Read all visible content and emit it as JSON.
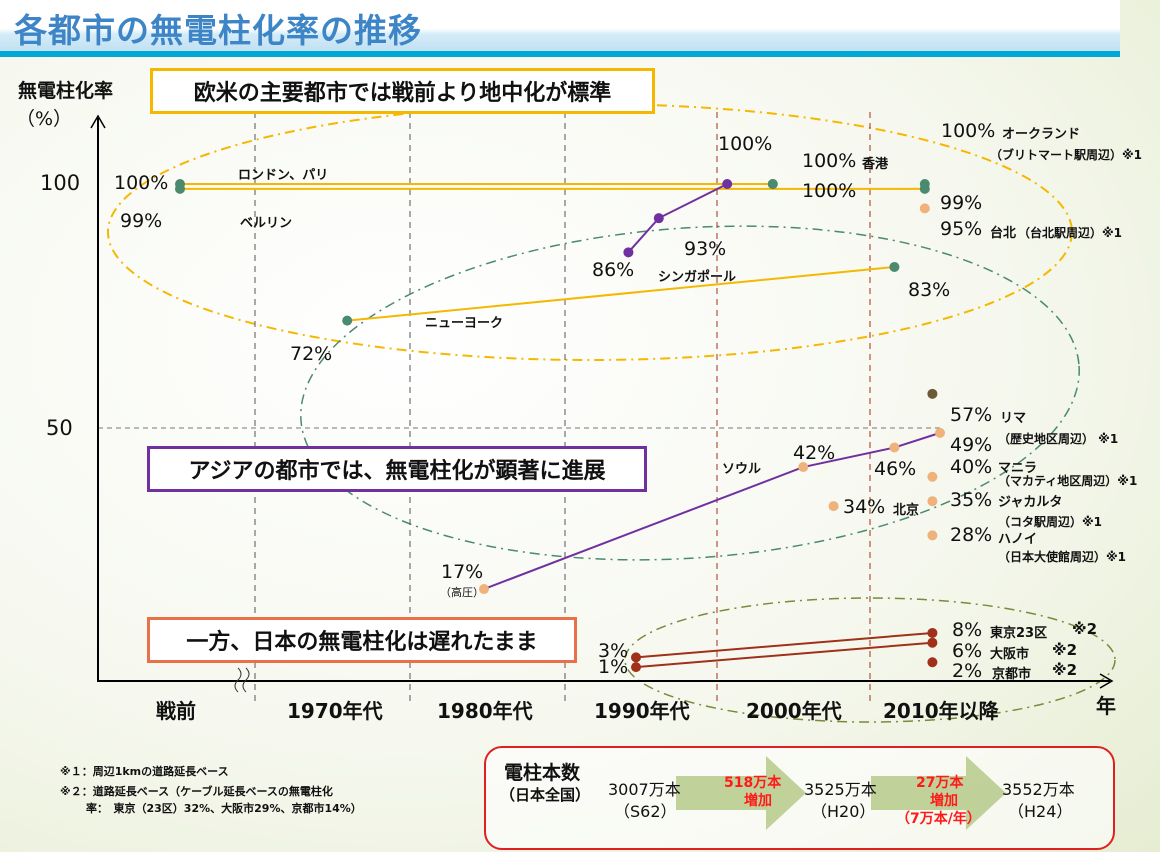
{
  "title": "各都市の無電柱化率の推移",
  "y_axis": {
    "label": "無電柱化率",
    "unit": "（%）",
    "ticks": [
      "100",
      "50"
    ]
  },
  "x_axis": {
    "label": "年",
    "categories": [
      "戦前",
      "1970年代",
      "1980年代",
      "1990年代",
      "2000年代",
      "2010年以降"
    ]
  },
  "callouts": {
    "western": "欧米の主要都市では戦前より地中化が標準",
    "asia": "アジアの都市では、無電柱化が顕著に進展",
    "japan": "一方、日本の無電柱化は遅れたまま"
  },
  "colors": {
    "western": "#f5b800",
    "asia": "#7030a0",
    "japan": "#a0301a",
    "green_dot": "#4a8a6e",
    "orange_dot": "#efb27a",
    "lima_dot": "#6b5a3a"
  },
  "chart_data": {
    "type": "line",
    "title": "各都市の無電柱化率の推移",
    "xlabel": "年",
    "ylabel": "無電柱化率（%）",
    "x_unit": "period index (0=戦前, 1=1970年代, 2=1980年代, 3=1990年代, 4=2000年代, 5=2010年以降)",
    "ylim": [
      0,
      100
    ],
    "series": [
      {
        "name": "ロンドン、パリ",
        "points": [
          [
            0,
            100
          ],
          [
            3.9,
            100
          ]
        ],
        "labels": [
          "100%",
          "100%"
        ],
        "color": "#f5b800"
      },
      {
        "name": "ベルリン",
        "points": [
          [
            0,
            99
          ],
          [
            4.9,
            99
          ]
        ],
        "labels": [
          "99%",
          "99%"
        ],
        "color": "#f5b800"
      },
      {
        "name": "ニューヨーク",
        "points": [
          [
            1.1,
            72
          ],
          [
            4.7,
            83
          ]
        ],
        "labels": [
          "72%",
          "83%"
        ],
        "color": "#f5b800"
      },
      {
        "name": "シンガポール",
        "points": [
          [
            2.95,
            86
          ],
          [
            3.15,
            93
          ],
          [
            3.6,
            100
          ]
        ],
        "labels": [
          "86%",
          "93%",
          "100%"
        ],
        "color": "#7030a0"
      },
      {
        "name": "ソウル",
        "points": [
          [
            2.0,
            17
          ],
          [
            4.1,
            42
          ],
          [
            4.7,
            46
          ],
          [
            5.0,
            49
          ]
        ],
        "labels": [
          "17%",
          "42%",
          "46%",
          "49%"
        ],
        "note": "（高圧）",
        "color": "#7030a0"
      },
      {
        "name": "東京23区",
        "points": [
          [
            3.0,
            3
          ],
          [
            4.95,
            8
          ]
        ],
        "labels": [
          "3%",
          "8%"
        ],
        "note": "※2",
        "color": "#a0301a"
      },
      {
        "name": "大阪市",
        "points": [
          [
            3.0,
            1
          ],
          [
            4.95,
            6
          ]
        ],
        "labels": [
          "1%",
          "6%"
        ],
        "note": "※2",
        "color": "#a0301a"
      }
    ],
    "points": [
      {
        "name": "香港",
        "x": 3.9,
        "y": 100,
        "label": "100%"
      },
      {
        "name": "オークランド",
        "x": 4.9,
        "y": 100,
        "label": "100%",
        "note": "（ブリトマート駅周辺）※1"
      },
      {
        "name": "台北",
        "x": 4.9,
        "y": 95,
        "label": "95%",
        "note": "（台北駅周辺）※1"
      },
      {
        "name": "北京",
        "x": 4.3,
        "y": 34,
        "label": "34%"
      },
      {
        "name": "リマ",
        "x": 4.95,
        "y": 57,
        "label": "57%",
        "note": "（歴史地区周辺） ※1"
      },
      {
        "name": "マニラ",
        "x": 4.95,
        "y": 40,
        "label": "40%",
        "note": "（マカティ地区周辺）※1"
      },
      {
        "name": "ジャカルタ",
        "x": 4.95,
        "y": 35,
        "label": "35%",
        "note": "（コタ駅周辺）※1"
      },
      {
        "name": "ハノイ",
        "x": 4.95,
        "y": 28,
        "label": "28%",
        "note": "（日本大使館周辺）※1"
      },
      {
        "name": "京都市",
        "x": 4.95,
        "y": 2,
        "label": "2%",
        "note": "※2"
      }
    ]
  },
  "footnotes": [
    "※１：周辺1kmの道路延長ベース",
    "※２：道路延長ベース（ケーブル延長ベースの無電柱化",
    "率：　東京（23区）32%、大阪市29%、京都市14%）"
  ],
  "poles": {
    "label": "電柱本数",
    "scope": "（日本全国）",
    "steps": [
      {
        "value": "3007万本",
        "year": "（S62）"
      },
      {
        "value": "3525万本",
        "year": "（H20）"
      },
      {
        "value": "3552万本",
        "year": "（H24）"
      }
    ],
    "increases": [
      {
        "amount": "518万本",
        "word": "増加"
      },
      {
        "amount": "27万本",
        "word": "増加",
        "rate": "（7万本/年）"
      }
    ]
  }
}
